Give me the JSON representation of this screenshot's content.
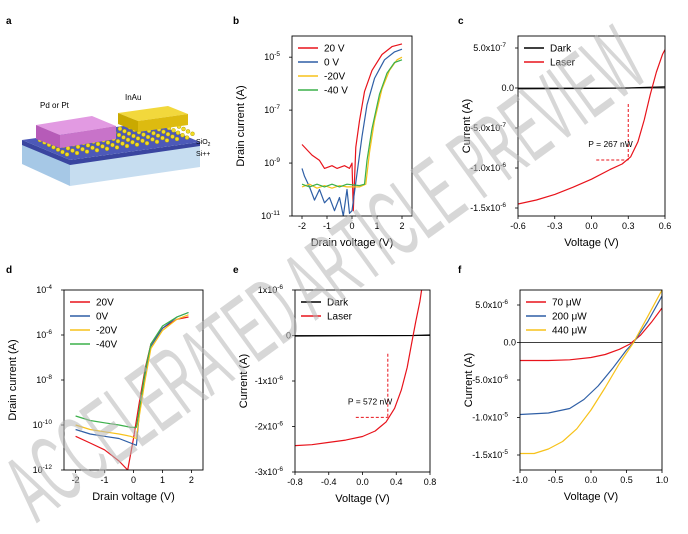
{
  "panel_labels": [
    "a",
    "b",
    "c",
    "d",
    "e",
    "f"
  ],
  "watermark": "ACCELERATED ARTICLE PREVIEW",
  "colors": {
    "red": "#e8131b",
    "blue": "#2f5fa6",
    "yellow": "#f7c21a",
    "green": "#3bb04a",
    "black": "#000000",
    "dash": "#e8131b"
  },
  "schematic": {
    "label_left_contact": "Pd or Pt",
    "label_right_contact": "InAu",
    "label_oxide": "SiO",
    "label_oxide_sub": "2",
    "label_substrate": "Si++"
  },
  "chart_data": [
    {
      "panel": "b",
      "type": "line",
      "yscale": "log",
      "xlabel": "Drain voltage (V)",
      "ylabel": "Drain current (A)",
      "xlim": [
        -2.4,
        2.4
      ],
      "ylim_exp": [
        -11,
        -4.2
      ],
      "xticks": [
        "-2",
        "-1",
        "0",
        "1",
        "2"
      ],
      "xtick_values": [
        -2,
        -1,
        0,
        1,
        2
      ],
      "yticks": [
        "10",
        "10",
        "10",
        "10"
      ],
      "ytick_exps": [
        "-11",
        "-9",
        "-7",
        "-5"
      ],
      "ytick_values": [
        -11,
        -9,
        -7,
        -5
      ],
      "legend": "top-left",
      "series": [
        {
          "name": "20 V",
          "color": "#e8131b",
          "points": [
            [
              -2,
              -8.3
            ],
            [
              -1.6,
              -8.7
            ],
            [
              -1.3,
              -8.9
            ],
            [
              -1.1,
              -9.2
            ],
            [
              -0.8,
              -9.1
            ],
            [
              -0.6,
              -9.2
            ],
            [
              -0.3,
              -9.1
            ],
            [
              -0.1,
              -9.2
            ],
            [
              0.0,
              -9.0
            ],
            [
              0.05,
              -10.8
            ],
            [
              0.15,
              -8.4
            ],
            [
              0.3,
              -7.4
            ],
            [
              0.5,
              -6.3
            ],
            [
              0.8,
              -5.5
            ],
            [
              1.2,
              -4.9
            ],
            [
              1.6,
              -4.6
            ],
            [
              2.0,
              -4.5
            ]
          ]
        },
        {
          "name": "0 V",
          "color": "#2f5fa6",
          "points": [
            [
              -2,
              -9.2
            ],
            [
              -1.9,
              -9.5
            ],
            [
              -1.7,
              -9.9
            ],
            [
              -1.5,
              -10.4
            ],
            [
              -1.3,
              -10.0
            ],
            [
              -1.1,
              -10.5
            ],
            [
              -0.9,
              -10.3
            ],
            [
              -0.7,
              -10.8
            ],
            [
              -0.5,
              -10.3
            ],
            [
              -0.35,
              -11.0
            ],
            [
              -0.2,
              -10.0
            ],
            [
              -0.1,
              -10.9
            ],
            [
              0.0,
              -10.8
            ],
            [
              0.2,
              -9.4
            ],
            [
              0.4,
              -8.0
            ],
            [
              0.6,
              -6.8
            ],
            [
              0.9,
              -5.8
            ],
            [
              1.3,
              -5.1
            ],
            [
              1.7,
              -4.8
            ],
            [
              2.0,
              -4.7
            ]
          ]
        },
        {
          "name": "-20V",
          "color": "#f7c21a",
          "points": [
            [
              -2,
              -9.9
            ],
            [
              -1.7,
              -9.8
            ],
            [
              -1.4,
              -9.95
            ],
            [
              -1.1,
              -9.85
            ],
            [
              -0.8,
              -9.95
            ],
            [
              -0.5,
              -9.85
            ],
            [
              -0.2,
              -9.9
            ],
            [
              0.3,
              -9.9
            ],
            [
              0.55,
              -9.8
            ],
            [
              0.7,
              -8.6
            ],
            [
              0.9,
              -7.4
            ],
            [
              1.2,
              -6.2
            ],
            [
              1.5,
              -5.5
            ],
            [
              1.8,
              -5.1
            ],
            [
              2.0,
              -5.0
            ]
          ]
        },
        {
          "name": "-40 V",
          "color": "#3bb04a",
          "points": [
            [
              -2,
              -9.8
            ],
            [
              -1.7,
              -9.9
            ],
            [
              -1.4,
              -9.8
            ],
            [
              -1.1,
              -9.9
            ],
            [
              -0.8,
              -9.8
            ],
            [
              -0.5,
              -9.9
            ],
            [
              -0.2,
              -9.8
            ],
            [
              0.3,
              -9.85
            ],
            [
              0.5,
              -9.8
            ],
            [
              0.6,
              -8.9
            ],
            [
              0.8,
              -7.7
            ],
            [
              1.1,
              -6.4
            ],
            [
              1.4,
              -5.6
            ],
            [
              1.7,
              -5.2
            ],
            [
              2.0,
              -5.1
            ]
          ]
        }
      ]
    },
    {
      "panel": "c",
      "type": "line",
      "xlabel": "Voltage (V)",
      "ylabel": "Current (A)",
      "xlim": [
        -0.6,
        0.6
      ],
      "ylim": [
        -1.6e-06,
        6.5e-07
      ],
      "xticks": [
        "-0.6",
        "-0.3",
        "0.0",
        "0.3",
        "0.6"
      ],
      "xtick_values": [
        -0.6,
        -0.3,
        0.0,
        0.3,
        0.6
      ],
      "yticks": [
        "-1.5x10",
        "-1.0x10",
        "-5.0x10",
        "0.0",
        "5.0x10"
      ],
      "ytick_exps": [
        "-6",
        "-6",
        "-7",
        "",
        "-7"
      ],
      "ytick_values": [
        -1.5e-06,
        -1e-06,
        -5e-07,
        0.0,
        5e-07
      ],
      "legend": "top-left",
      "annotation": "P = 267 nW",
      "annotation_point": [
        0.3,
        -9e-07
      ],
      "series": [
        {
          "name": "Dark",
          "color": "#000000",
          "points": [
            [
              -0.6,
              -1e-08
            ],
            [
              0.0,
              -5e-09
            ],
            [
              0.3,
              0.0
            ],
            [
              0.6,
              1.5e-08
            ]
          ]
        },
        {
          "name": "Laser",
          "color": "#e8131b",
          "points": [
            [
              -0.6,
              -1.45e-06
            ],
            [
              -0.45,
              -1.4e-06
            ],
            [
              -0.3,
              -1.33e-06
            ],
            [
              -0.15,
              -1.24e-06
            ],
            [
              0.0,
              -1.14e-06
            ],
            [
              0.15,
              -1.02e-06
            ],
            [
              0.25,
              -9.5e-07
            ],
            [
              0.32,
              -8.6e-07
            ],
            [
              0.38,
              -6.7e-07
            ],
            [
              0.43,
              -4e-07
            ],
            [
              0.48,
              -8e-08
            ],
            [
              0.53,
              2e-07
            ],
            [
              0.58,
              4.2e-07
            ],
            [
              0.6,
              4.8e-07
            ]
          ]
        }
      ]
    },
    {
      "panel": "d",
      "type": "line",
      "yscale": "log",
      "xlabel": "Drain voltage (V)",
      "ylabel": "Drain current (A)",
      "xlim": [
        -2.4,
        2.4
      ],
      "ylim_exp": [
        -12,
        -4
      ],
      "xticks": [
        "-2",
        "-1",
        "0",
        "1",
        "2"
      ],
      "xtick_values": [
        -2,
        -1,
        0,
        1,
        2
      ],
      "yticks": [
        "10",
        "10",
        "10",
        "10",
        "10"
      ],
      "ytick_exps": [
        "-12",
        "-10",
        "-8",
        "-6",
        "-4"
      ],
      "ytick_values": [
        -12,
        -10,
        -8,
        -6,
        -4
      ],
      "legend": "top-left",
      "series": [
        {
          "name": "20V",
          "color": "#e8131b",
          "points": [
            [
              -2,
              -10.5
            ],
            [
              -1.5,
              -10.8
            ],
            [
              -1.0,
              -11.1
            ],
            [
              -0.5,
              -11.6
            ],
            [
              -0.2,
              -12.0
            ],
            [
              0.0,
              -10.6
            ],
            [
              0.2,
              -9.0
            ],
            [
              0.4,
              -7.5
            ],
            [
              0.6,
              -6.4
            ],
            [
              1.0,
              -5.7
            ],
            [
              1.5,
              -5.3
            ],
            [
              1.9,
              -5.2
            ]
          ]
        },
        {
          "name": "0V",
          "color": "#2f5fa6",
          "points": [
            [
              -2,
              -10.2
            ],
            [
              -1.5,
              -10.4
            ],
            [
              -1.0,
              -10.5
            ],
            [
              -0.5,
              -10.6
            ],
            [
              -0.1,
              -10.8
            ],
            [
              0.1,
              -10.9
            ],
            [
              0.2,
              -9.5
            ],
            [
              0.4,
              -7.8
            ],
            [
              0.6,
              -6.5
            ],
            [
              1.0,
              -5.7
            ],
            [
              1.5,
              -5.2
            ],
            [
              1.9,
              -5.0
            ]
          ]
        },
        {
          "name": "-20V",
          "color": "#f7c21a",
          "points": [
            [
              -2,
              -10.0
            ],
            [
              -1.5,
              -10.2
            ],
            [
              -1.0,
              -10.3
            ],
            [
              -0.5,
              -10.4
            ],
            [
              -0.1,
              -10.5
            ],
            [
              0.1,
              -10.6
            ],
            [
              0.2,
              -9.6
            ],
            [
              0.4,
              -8.0
            ],
            [
              0.6,
              -6.6
            ],
            [
              1.0,
              -5.8
            ],
            [
              1.5,
              -5.3
            ],
            [
              1.9,
              -5.1
            ]
          ]
        },
        {
          "name": "-40V",
          "color": "#3bb04a",
          "points": [
            [
              -2,
              -9.6
            ],
            [
              -1.5,
              -9.8
            ],
            [
              -1.0,
              -9.9
            ],
            [
              -0.5,
              -10.0
            ],
            [
              -0.1,
              -10.1
            ],
            [
              0.1,
              -10.1
            ],
            [
              0.2,
              -9.3
            ],
            [
              0.4,
              -7.6
            ],
            [
              0.6,
              -6.4
            ],
            [
              1.0,
              -5.6
            ],
            [
              1.5,
              -5.2
            ],
            [
              1.9,
              -5.0
            ]
          ]
        }
      ]
    },
    {
      "panel": "e",
      "type": "line",
      "xlabel": "Voltage (V)",
      "ylabel": "Current (A)",
      "xlim": [
        -0.8,
        0.8
      ],
      "ylim": [
        -3e-06,
        1e-06
      ],
      "xticks": [
        "-0.8",
        "-0.4",
        "0.0",
        "0.4",
        "0.8"
      ],
      "xtick_values": [
        -0.8,
        -0.4,
        0.0,
        0.4,
        0.8
      ],
      "yticks": [
        "-3x10",
        "-2x10",
        "-1x10",
        "0",
        "1x10"
      ],
      "ytick_exps": [
        "-6",
        "-6",
        "-6",
        "",
        "-6"
      ],
      "ytick_values": [
        -3e-06,
        -2e-06,
        -1e-06,
        0,
        1e-06
      ],
      "legend": "top-left",
      "annotation": "P = 572 nW",
      "annotation_point": [
        0.3,
        -1.8e-06
      ],
      "series": [
        {
          "name": "Dark",
          "color": "#000000",
          "points": [
            [
              -0.8,
              -1e-08
            ],
            [
              0.0,
              -5e-09
            ],
            [
              0.6,
              0.0
            ],
            [
              0.8,
              1e-08
            ]
          ]
        },
        {
          "name": "Laser",
          "color": "#e8131b",
          "points": [
            [
              -0.8,
              -2.42e-06
            ],
            [
              -0.6,
              -2.4e-06
            ],
            [
              -0.4,
              -2.35e-06
            ],
            [
              -0.2,
              -2.3e-06
            ],
            [
              0.0,
              -2.22e-06
            ],
            [
              0.15,
              -2.1e-06
            ],
            [
              0.28,
              -1.9e-06
            ],
            [
              0.38,
              -1.6e-06
            ],
            [
              0.46,
              -1.2e-06
            ],
            [
              0.53,
              -7e-07
            ],
            [
              0.58,
              -2e-07
            ],
            [
              0.63,
              3e-07
            ],
            [
              0.68,
              7.5e-07
            ],
            [
              0.7,
              1e-06
            ]
          ]
        }
      ]
    },
    {
      "panel": "f",
      "type": "line",
      "xlabel": "Voltage (V)",
      "ylabel": "Current (A)",
      "xlim": [
        -1.0,
        1.0
      ],
      "ylim": [
        -1.7e-05,
        7e-06
      ],
      "xticks": [
        "-1.0",
        "-0.5",
        "0.0",
        "0.5",
        "1.0"
      ],
      "xtick_values": [
        -1.0,
        -0.5,
        0.0,
        0.5,
        1.0
      ],
      "yticks": [
        "-1.5x10",
        "-1.0x10",
        "-5.0x10",
        "0.0",
        "5.0x10"
      ],
      "ytick_exps": [
        "-5",
        "-5",
        "-6",
        "",
        "-6"
      ],
      "ytick_values": [
        -1.5e-05,
        -1e-05,
        -5e-06,
        0.0,
        5e-06
      ],
      "legend": "top-left",
      "series": [
        {
          "name": "70 μW",
          "color": "#e8131b",
          "points": [
            [
              -1.0,
              -2.4e-06
            ],
            [
              -0.6,
              -2.4e-06
            ],
            [
              -0.3,
              -2.3e-06
            ],
            [
              0.0,
              -2e-06
            ],
            [
              0.2,
              -1.6e-06
            ],
            [
              0.4,
              -9e-07
            ],
            [
              0.55,
              -2e-07
            ],
            [
              0.7,
              1e-06
            ],
            [
              0.85,
              2.7e-06
            ],
            [
              1.0,
              4.6e-06
            ]
          ]
        },
        {
          "name": "200 μW",
          "color": "#2f5fa6",
          "points": [
            [
              -1.0,
              -9.6e-06
            ],
            [
              -0.6,
              -9.4e-06
            ],
            [
              -0.3,
              -8.8e-06
            ],
            [
              -0.1,
              -7.6e-06
            ],
            [
              0.1,
              -5.8e-06
            ],
            [
              0.3,
              -3.5e-06
            ],
            [
              0.5,
              -1e-06
            ],
            [
              0.6,
              0.0
            ],
            [
              0.8,
              2.8e-06
            ],
            [
              1.0,
              6.2e-06
            ]
          ]
        },
        {
          "name": "440 μW",
          "color": "#f7c21a",
          "points": [
            [
              -1.0,
              -1.48e-05
            ],
            [
              -0.8,
              -1.48e-05
            ],
            [
              -0.6,
              -1.42e-05
            ],
            [
              -0.4,
              -1.32e-05
            ],
            [
              -0.2,
              -1.15e-05
            ],
            [
              0.0,
              -9e-06
            ],
            [
              0.2,
              -6e-06
            ],
            [
              0.4,
              -2.8e-06
            ],
            [
              0.6,
              0.0
            ],
            [
              0.8,
              3.5e-06
            ],
            [
              1.0,
              7e-06
            ]
          ]
        }
      ]
    }
  ]
}
